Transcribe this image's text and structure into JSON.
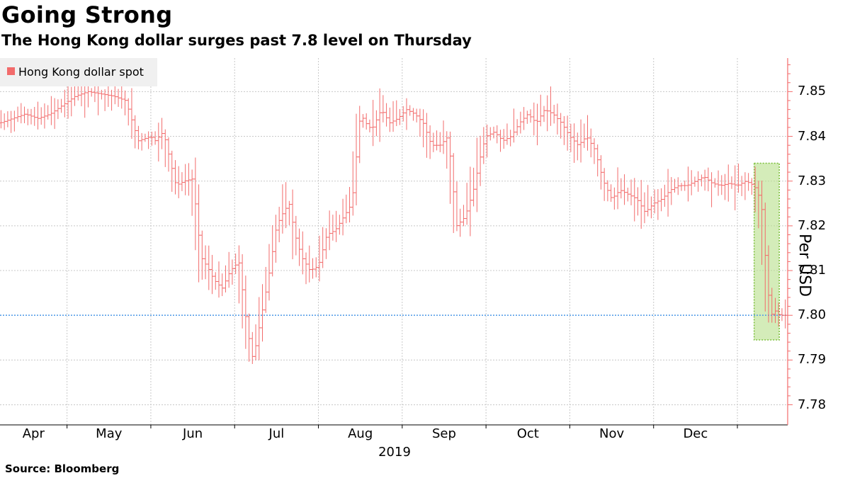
{
  "title": "Going Strong",
  "subtitle": "The Hong Kong dollar surges past 7.8 level on Thursday",
  "source": "Source: Bloomberg",
  "chart_data": {
    "type": "line",
    "series_name": "Hong Kong dollar spot",
    "ylabel": "Per USD",
    "ylim": [
      7.7755,
      7.8575
    ],
    "yticks": [
      "7.78",
      "7.79",
      "7.80",
      "7.81",
      "7.82",
      "7.83",
      "7.84",
      "7.85"
    ],
    "xlim": [
      3.2,
      12.6
    ],
    "xticks": [
      "Apr",
      "May",
      "Jun",
      "Jul",
      "Aug",
      "Sep",
      "Oct",
      "Nov",
      "Dec"
    ],
    "year_label": "2019",
    "reference_line": 7.8,
    "highlight_range": {
      "x": [
        12.2,
        12.5
      ],
      "y": [
        7.7945,
        7.834
      ]
    },
    "x": [
      3.2,
      3.35,
      3.5,
      3.65,
      3.8,
      3.95,
      4.1,
      4.25,
      4.4,
      4.55,
      4.7,
      4.85,
      5.0,
      5.05,
      5.15,
      5.3,
      5.4,
      5.5,
      5.6,
      5.7,
      5.75,
      5.85,
      5.95,
      6.05,
      6.15,
      6.22,
      6.3,
      6.4,
      6.5,
      6.58,
      6.65,
      6.72,
      6.8,
      6.9,
      7.0,
      7.1,
      7.2,
      7.3,
      7.4,
      7.5,
      7.6,
      7.65,
      7.75,
      7.85,
      7.95,
      8.05,
      8.15,
      8.25,
      8.35,
      8.45,
      8.55,
      8.65,
      8.75,
      8.85,
      8.95,
      9.0,
      9.1,
      9.2,
      9.3,
      9.4,
      9.5,
      9.6,
      9.7,
      9.8,
      9.9,
      10.0,
      10.1,
      10.2,
      10.3,
      10.4,
      10.5,
      10.6,
      10.7,
      10.8,
      10.9,
      11.0,
      11.1,
      11.2,
      11.3,
      11.4,
      11.5,
      11.6,
      11.7,
      11.8,
      11.9,
      12.0,
      12.1,
      12.2,
      12.25,
      12.3,
      12.35,
      12.4,
      12.45,
      12.5
    ],
    "values": [
      7.843,
      7.844,
      7.845,
      7.844,
      7.845,
      7.847,
      7.849,
      7.85,
      7.8495,
      7.849,
      7.848,
      7.839,
      7.84,
      7.839,
      7.841,
      7.829,
      7.83,
      7.8305,
      7.813,
      7.81,
      7.808,
      7.806,
      7.81,
      7.812,
      7.797,
      7.79,
      7.798,
      7.808,
      7.82,
      7.823,
      7.825,
      7.818,
      7.813,
      7.81,
      7.811,
      7.818,
      7.819,
      7.822,
      7.825,
      7.845,
      7.842,
      7.842,
      7.846,
      7.843,
      7.844,
      7.846,
      7.845,
      7.843,
      7.838,
      7.838,
      7.84,
      7.82,
      7.822,
      7.828,
      7.837,
      7.84,
      7.841,
      7.839,
      7.84,
      7.843,
      7.845,
      7.843,
      7.846,
      7.845,
      7.843,
      7.84,
      7.838,
      7.84,
      7.837,
      7.83,
      7.826,
      7.828,
      7.827,
      7.826,
      7.823,
      7.825,
      7.826,
      7.828,
      7.829,
      7.829,
      7.83,
      7.831,
      7.8295,
      7.829,
      7.8295,
      7.829,
      7.83,
      7.829,
      7.827,
      7.823,
      7.808,
      7.8,
      7.801,
      7.8
    ]
  }
}
